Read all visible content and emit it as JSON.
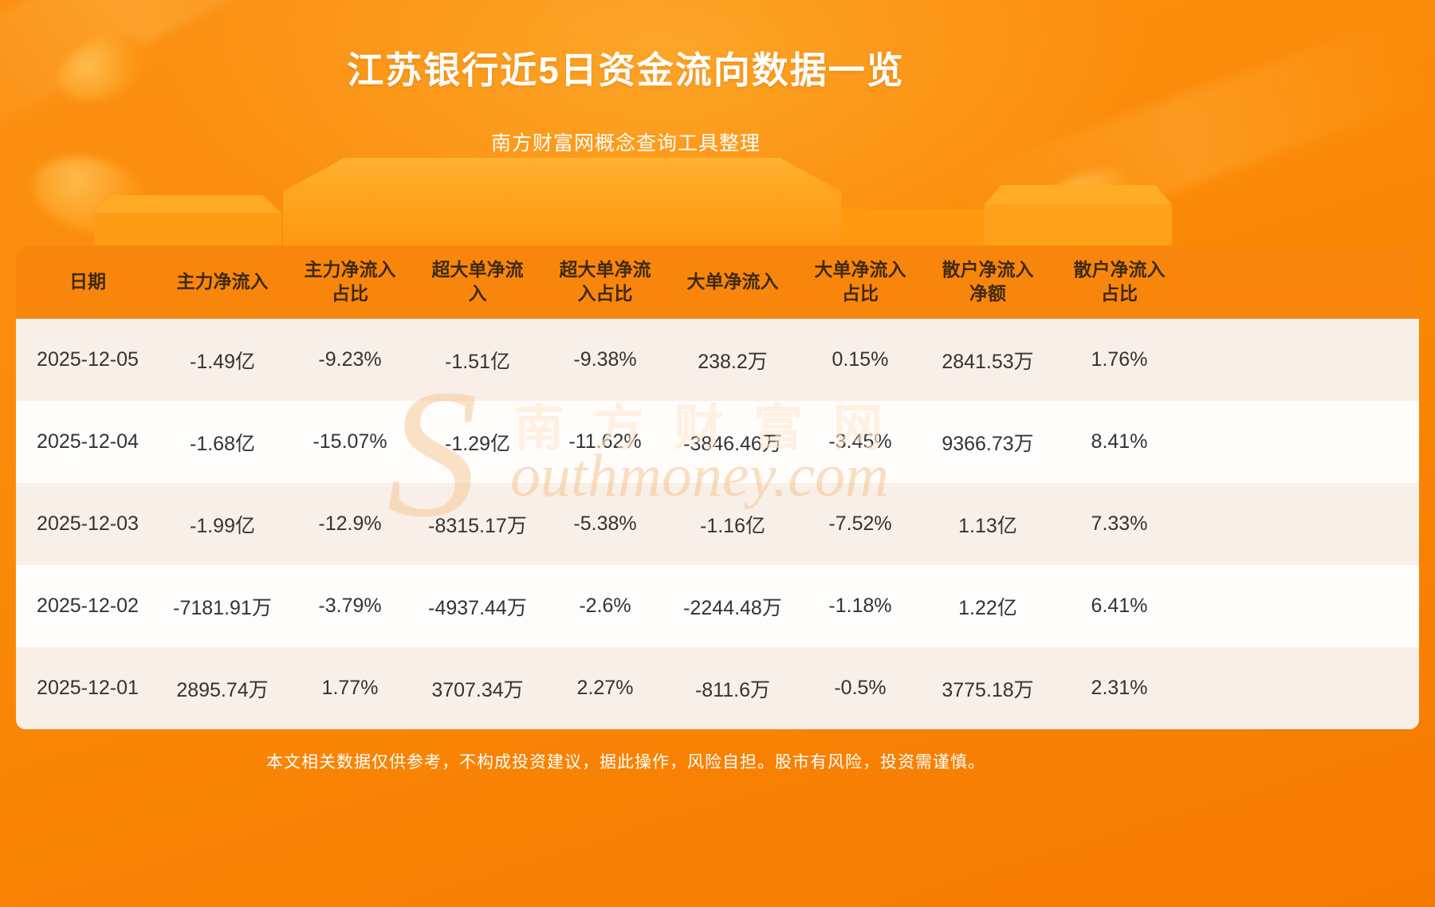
{
  "page": {
    "title": "江苏银行近5日资金流向数据一览",
    "subtitle": "南方财富网概念查询工具整理",
    "disclaimer": "本文相关数据仅供参考，不构成投资建议，据此操作，风险自担。股市有风险，投资需谨慎。"
  },
  "watermark": {
    "initial": "S",
    "latin": "outhmoney.com",
    "cjk": "南方财富网"
  },
  "chart_data": {
    "type": "table",
    "title": "江苏银行近5日资金流向数据一览",
    "columns": [
      "日期",
      "主力净流入",
      "主力净流入\n占比",
      "超大单净流\n入",
      "超大单净流\n入占比",
      "大单净流入",
      "大单净流入\n占比",
      "散户净流入\n净额",
      "散户净流入\n占比"
    ],
    "rows": [
      [
        "2025-12-05",
        "-1.49亿",
        "-9.23%",
        "-1.51亿",
        "-9.38%",
        "238.2万",
        "0.15%",
        "2841.53万",
        "1.76%"
      ],
      [
        "2025-12-04",
        "-1.68亿",
        "-15.07%",
        "-1.29亿",
        "-11.62%",
        "-3846.46万",
        "-3.45%",
        "9366.73万",
        "8.41%"
      ],
      [
        "2025-12-03",
        "-1.99亿",
        "-12.9%",
        "-8315.17万",
        "-5.38%",
        "-1.16亿",
        "-7.52%",
        "1.13亿",
        "7.33%"
      ],
      [
        "2025-12-02",
        "-7181.91万",
        "-3.79%",
        "-4937.44万",
        "-2.6%",
        "-2244.48万",
        "-1.18%",
        "1.22亿",
        "6.41%"
      ],
      [
        "2025-12-01",
        "2895.74万",
        "1.77%",
        "3707.34万",
        "2.27%",
        "-811.6万",
        "-0.5%",
        "3775.18万",
        "2.31%"
      ]
    ]
  },
  "colors": {
    "page-bg-top": "#fb9013",
    "page-bg-bottom": "#f57a01",
    "header-bg": "#f9860c",
    "header-text": "#3f2a10",
    "row-odd": "#f8efe8",
    "row-even": "#fffdfb",
    "cell-text": "#333333",
    "title-text": "#ffffff",
    "watermark": "#f6c088"
  }
}
